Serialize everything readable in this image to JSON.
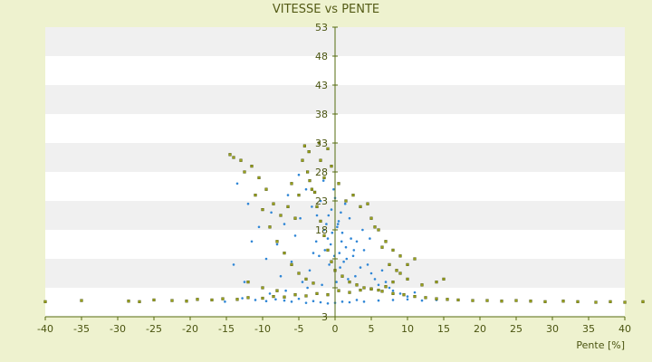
{
  "chart_data": {
    "type": "scatter",
    "title": "VITESSE vs PENTE",
    "xlabel": "Pente [%]",
    "ylabel": "",
    "xlim": [
      -40,
      40
    ],
    "ylim": [
      3,
      53
    ],
    "x_ticks": [
      -40,
      -35,
      -30,
      -25,
      -20,
      -15,
      -10,
      -5,
      0,
      5,
      10,
      15,
      20,
      25,
      30,
      35,
      40
    ],
    "y_ticks": [
      3,
      8,
      13,
      18,
      23,
      28,
      33,
      38,
      43,
      48,
      53
    ],
    "x_tick_labels": [
      "-40",
      "-35",
      "-30",
      "-25",
      "-20",
      "-15",
      "-10",
      "-5",
      "0",
      "5",
      "10",
      "15",
      "20",
      "25",
      "30",
      "35",
      "40"
    ],
    "y_tick_labels": [
      "3",
      "",
      "",
      "18",
      "23",
      "28",
      "33",
      "38",
      "43",
      "48",
      "53"
    ],
    "grid": "horizontal bands",
    "legend": "none",
    "colors": {
      "background": "#eef2cf",
      "plot_band_light": "#ffffff",
      "plot_band_dark": "#f0f0f0",
      "axis": "#556b0f",
      "series_blue": "#2f86d6",
      "series_olive": "#9aa21a"
    },
    "series": [
      {
        "color": "#2f86d6",
        "points": [
          [
            -15.2,
            5.6
          ],
          [
            -12.8,
            6.2
          ],
          [
            -11.0,
            5.9
          ],
          [
            -9.5,
            5.7
          ],
          [
            -8.2,
            6.0
          ],
          [
            -7.0,
            5.8
          ],
          [
            -6.0,
            5.6
          ],
          [
            -5.0,
            6.1
          ],
          [
            -4.0,
            5.4
          ],
          [
            -3.0,
            5.7
          ],
          [
            -2.0,
            5.5
          ],
          [
            -1.0,
            5.3
          ],
          [
            0.0,
            5.4
          ],
          [
            1.0,
            5.6
          ],
          [
            2.0,
            5.5
          ],
          [
            3.0,
            5.9
          ],
          [
            4.0,
            5.6
          ],
          [
            6.0,
            5.8
          ],
          [
            8.0,
            5.9
          ],
          [
            10.0,
            6.0
          ],
          [
            12.0,
            5.8
          ],
          [
            14.0,
            5.9
          ],
          [
            -13.5,
            26.0
          ],
          [
            -12.0,
            22.5
          ],
          [
            -11.5,
            16.0
          ],
          [
            -10.5,
            18.5
          ],
          [
            -9.5,
            13.0
          ],
          [
            -8.8,
            21.0
          ],
          [
            -8.0,
            15.5
          ],
          [
            -7.5,
            10.0
          ],
          [
            -7.0,
            19.0
          ],
          [
            -6.5,
            24.0
          ],
          [
            -6.0,
            12.5
          ],
          [
            -5.5,
            17.0
          ],
          [
            -5.0,
            27.5
          ],
          [
            -4.5,
            9.0
          ],
          [
            -4.0,
            25.0
          ],
          [
            -3.5,
            11.0
          ],
          [
            -3.0,
            14.0
          ],
          [
            -2.5,
            20.5
          ],
          [
            -2.0,
            23.0
          ],
          [
            -1.5,
            18.0
          ],
          [
            -1.0,
            16.5
          ],
          [
            -0.5,
            21.5
          ],
          [
            0.0,
            23.5
          ],
          [
            0.5,
            19.5
          ],
          [
            1.0,
            17.5
          ],
          [
            1.5,
            15.0
          ],
          [
            2.0,
            20.0
          ],
          [
            2.5,
            13.5
          ],
          [
            3.0,
            16.0
          ],
          [
            3.5,
            11.5
          ],
          [
            4.0,
            14.5
          ],
          [
            4.5,
            12.0
          ],
          [
            5.0,
            10.5
          ],
          [
            5.5,
            9.5
          ],
          [
            6.0,
            8.5
          ],
          [
            6.5,
            11.0
          ],
          [
            7.0,
            9.0
          ],
          [
            7.5,
            8.0
          ],
          [
            8.0,
            7.5
          ],
          [
            9.0,
            7.0
          ],
          [
            10.0,
            6.5
          ],
          [
            11.0,
            7.2
          ],
          [
            -14.0,
            12.0
          ],
          [
            -12.5,
            9.0
          ],
          [
            -10.0,
            8.0
          ],
          [
            -9.0,
            7.0
          ],
          [
            -6.8,
            7.5
          ],
          [
            -3.8,
            8.0
          ],
          [
            -1.8,
            8.5
          ],
          [
            0.2,
            9.0
          ],
          [
            1.8,
            9.5
          ],
          [
            2.8,
            10.0
          ],
          [
            -0.8,
            12.0
          ],
          [
            1.2,
            12.5
          ],
          [
            -2.2,
            13.5
          ],
          [
            0.6,
            14.0
          ],
          [
            2.2,
            16.5
          ],
          [
            -1.2,
            19.0
          ],
          [
            0.8,
            21.0
          ],
          [
            -0.2,
            25.0
          ],
          [
            -1.6,
            26.5
          ],
          [
            -3.2,
            22.0
          ],
          [
            3.8,
            18.0
          ],
          [
            4.8,
            16.5
          ],
          [
            -4.8,
            20.0
          ],
          [
            1.4,
            22.5
          ],
          [
            -0.4,
            17.5
          ],
          [
            0.4,
            19.0
          ],
          [
            -0.6,
            15.5
          ],
          [
            0.9,
            16.0
          ],
          [
            -1.4,
            14.5
          ],
          [
            1.6,
            13.0
          ],
          [
            -2.6,
            16.0
          ],
          [
            2.6,
            14.5
          ],
          [
            -0.9,
            20.5
          ],
          [
            0.3,
            18.5
          ],
          [
            -0.1,
            13.5
          ],
          [
            0.7,
            11.5
          ]
        ]
      },
      {
        "color": "#9aa21a",
        "points": [
          [
            -40.0,
            5.6
          ],
          [
            -35.0,
            5.8
          ],
          [
            -28.5,
            5.7
          ],
          [
            -27.0,
            5.6
          ],
          [
            -25.0,
            5.9
          ],
          [
            -22.5,
            5.8
          ],
          [
            -20.5,
            5.7
          ],
          [
            -19.0,
            6.0
          ],
          [
            -17.0,
            5.9
          ],
          [
            -15.5,
            6.1
          ],
          [
            -13.5,
            6.0
          ],
          [
            -12.0,
            6.3
          ],
          [
            -10.0,
            6.2
          ],
          [
            -8.5,
            6.5
          ],
          [
            -7.0,
            6.4
          ],
          [
            -5.5,
            6.8
          ],
          [
            -4.0,
            6.6
          ],
          [
            -2.5,
            7.0
          ],
          [
            -1.0,
            6.8
          ],
          [
            0.5,
            7.5
          ],
          [
            2.0,
            7.2
          ],
          [
            3.5,
            7.6
          ],
          [
            5.0,
            7.8
          ],
          [
            6.5,
            7.4
          ],
          [
            8.0,
            7.0
          ],
          [
            9.5,
            6.8
          ],
          [
            11.0,
            6.5
          ],
          [
            12.5,
            6.3
          ],
          [
            14.0,
            6.1
          ],
          [
            15.5,
            6.0
          ],
          [
            17.0,
            5.9
          ],
          [
            19.0,
            5.8
          ],
          [
            21.0,
            5.8
          ],
          [
            23.0,
            5.7
          ],
          [
            25.0,
            5.8
          ],
          [
            27.0,
            5.7
          ],
          [
            29.0,
            5.6
          ],
          [
            31.5,
            5.7
          ],
          [
            33.5,
            5.6
          ],
          [
            36.0,
            5.5
          ],
          [
            38.0,
            5.6
          ],
          [
            40.0,
            5.5
          ],
          [
            42.5,
            5.6
          ],
          [
            -14.5,
            31.0
          ],
          [
            -14.0,
            30.5
          ],
          [
            -12.5,
            28.0
          ],
          [
            -11.0,
            24.0
          ],
          [
            -10.0,
            21.5
          ],
          [
            -9.0,
            18.5
          ],
          [
            -8.0,
            16.0
          ],
          [
            -7.0,
            14.0
          ],
          [
            -6.0,
            12.0
          ],
          [
            -5.0,
            10.5
          ],
          [
            -4.0,
            9.5
          ],
          [
            -3.0,
            8.8
          ],
          [
            -4.5,
            30.0
          ],
          [
            -3.8,
            28.0
          ],
          [
            -3.2,
            25.0
          ],
          [
            -2.5,
            22.0
          ],
          [
            -2.0,
            19.5
          ],
          [
            -1.5,
            17.0
          ],
          [
            -1.0,
            14.5
          ],
          [
            -0.5,
            12.5
          ],
          [
            0.0,
            11.0
          ],
          [
            1.0,
            10.0
          ],
          [
            2.0,
            9.0
          ],
          [
            3.0,
            8.5
          ],
          [
            4.0,
            8.0
          ],
          [
            5.0,
            7.8
          ],
          [
            6.0,
            7.6
          ],
          [
            7.0,
            8.2
          ],
          [
            8.0,
            9.0
          ],
          [
            9.0,
            10.5
          ],
          [
            10.0,
            12.0
          ],
          [
            11.0,
            13.0
          ],
          [
            4.5,
            22.5
          ],
          [
            5.0,
            20.0
          ],
          [
            6.0,
            18.0
          ],
          [
            7.0,
            16.0
          ],
          [
            8.0,
            14.5
          ],
          [
            9.0,
            13.5
          ],
          [
            2.5,
            24.0
          ],
          [
            3.5,
            22.0
          ],
          [
            5.5,
            18.5
          ],
          [
            6.5,
            15.0
          ],
          [
            7.5,
            12.0
          ],
          [
            8.5,
            11.0
          ],
          [
            10.0,
            9.5
          ],
          [
            12.0,
            8.5
          ],
          [
            14.0,
            9.0
          ],
          [
            15.0,
            9.5
          ],
          [
            -6.5,
            22.0
          ],
          [
            -5.5,
            20.0
          ],
          [
            -7.5,
            20.5
          ],
          [
            -8.5,
            22.5
          ],
          [
            -6.0,
            26.0
          ],
          [
            -5.0,
            24.0
          ],
          [
            -2.0,
            30.0
          ],
          [
            -1.5,
            27.0
          ],
          [
            -0.5,
            29.0
          ],
          [
            0.5,
            26.0
          ],
          [
            1.5,
            23.0
          ],
          [
            -3.5,
            26.5
          ],
          [
            -2.8,
            24.5
          ],
          [
            -9.5,
            25.0
          ],
          [
            -10.5,
            27.0
          ],
          [
            -11.5,
            29.0
          ],
          [
            -13.0,
            30.0
          ],
          [
            -1.0,
            32.0
          ],
          [
            -2.2,
            33.0
          ],
          [
            -3.6,
            31.5
          ],
          [
            -4.2,
            32.5
          ],
          [
            -12.0,
            9.0
          ],
          [
            -10.0,
            8.0
          ],
          [
            -8.0,
            7.5
          ]
        ]
      }
    ]
  }
}
